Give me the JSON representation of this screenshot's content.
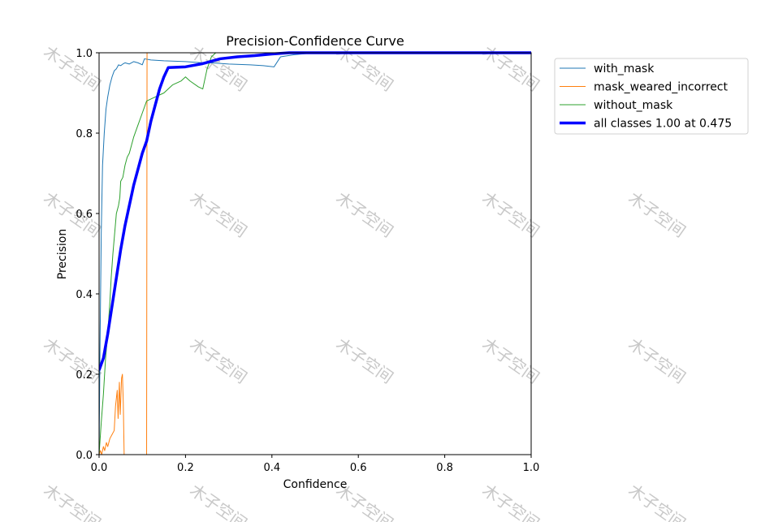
{
  "chart_data": {
    "type": "line",
    "title": "Precision-Confidence Curve",
    "xlabel": "Confidence",
    "ylabel": "Precision",
    "xlim": [
      0,
      1
    ],
    "ylim": [
      0,
      1
    ],
    "xticks": [
      "0.0",
      "0.2",
      "0.4",
      "0.6",
      "0.8",
      "1.0"
    ],
    "yticks": [
      "0.0",
      "0.2",
      "0.4",
      "0.6",
      "0.8",
      "1.0"
    ],
    "grid": false,
    "legend_position": "outside-top-right",
    "watermark": "木子空间",
    "series": [
      {
        "name": "with_mask",
        "color": "#1f77b4",
        "width": 1,
        "points": [
          [
            0.0,
            0.0
          ],
          [
            0.002,
            0.25
          ],
          [
            0.005,
            0.55
          ],
          [
            0.008,
            0.72
          ],
          [
            0.012,
            0.8
          ],
          [
            0.016,
            0.86
          ],
          [
            0.02,
            0.89
          ],
          [
            0.025,
            0.92
          ],
          [
            0.03,
            0.94
          ],
          [
            0.035,
            0.955
          ],
          [
            0.04,
            0.96
          ],
          [
            0.045,
            0.97
          ],
          [
            0.05,
            0.968
          ],
          [
            0.055,
            0.972
          ],
          [
            0.06,
            0.975
          ],
          [
            0.07,
            0.972
          ],
          [
            0.08,
            0.978
          ],
          [
            0.09,
            0.975
          ],
          [
            0.1,
            0.97
          ],
          [
            0.105,
            0.985
          ],
          [
            0.12,
            0.982
          ],
          [
            0.15,
            0.98
          ],
          [
            0.2,
            0.978
          ],
          [
            0.24,
            0.975
          ],
          [
            0.26,
            0.975
          ],
          [
            0.3,
            0.972
          ],
          [
            0.35,
            0.97
          ],
          [
            0.38,
            0.968
          ],
          [
            0.405,
            0.965
          ],
          [
            0.42,
            0.99
          ],
          [
            0.45,
            0.995
          ],
          [
            0.5,
            1.0
          ],
          [
            1.0,
            1.0
          ]
        ]
      },
      {
        "name": "mask_weared_incorrect",
        "color": "#ff7f0e",
        "width": 1,
        "points": [
          [
            0.0,
            0.0
          ],
          [
            0.003,
            0.01
          ],
          [
            0.006,
            0.0
          ],
          [
            0.01,
            0.02
          ],
          [
            0.013,
            0.01
          ],
          [
            0.017,
            0.03
          ],
          [
            0.02,
            0.02
          ],
          [
            0.025,
            0.04
          ],
          [
            0.03,
            0.05
          ],
          [
            0.035,
            0.06
          ],
          [
            0.038,
            0.12
          ],
          [
            0.042,
            0.16
          ],
          [
            0.044,
            0.09
          ],
          [
            0.047,
            0.18
          ],
          [
            0.049,
            0.1
          ],
          [
            0.052,
            0.19
          ],
          [
            0.054,
            0.2
          ],
          [
            0.056,
            0.13
          ],
          [
            0.058,
            0.0
          ],
          [
            0.11,
            0.0
          ],
          [
            0.111,
            1.0
          ],
          [
            1.0,
            1.0
          ]
        ]
      },
      {
        "name": "without_mask",
        "color": "#2ca02c",
        "width": 1,
        "points": [
          [
            0.0,
            0.0
          ],
          [
            0.005,
            0.08
          ],
          [
            0.01,
            0.15
          ],
          [
            0.015,
            0.24
          ],
          [
            0.02,
            0.3
          ],
          [
            0.025,
            0.38
          ],
          [
            0.028,
            0.44
          ],
          [
            0.032,
            0.5
          ],
          [
            0.036,
            0.55
          ],
          [
            0.04,
            0.6
          ],
          [
            0.045,
            0.62
          ],
          [
            0.048,
            0.64
          ],
          [
            0.05,
            0.68
          ],
          [
            0.055,
            0.69
          ],
          [
            0.06,
            0.72
          ],
          [
            0.065,
            0.74
          ],
          [
            0.07,
            0.75
          ],
          [
            0.075,
            0.77
          ],
          [
            0.08,
            0.79
          ],
          [
            0.09,
            0.82
          ],
          [
            0.1,
            0.85
          ],
          [
            0.11,
            0.88
          ],
          [
            0.12,
            0.885
          ],
          [
            0.13,
            0.89
          ],
          [
            0.15,
            0.9
          ],
          [
            0.17,
            0.92
          ],
          [
            0.19,
            0.93
          ],
          [
            0.2,
            0.94
          ],
          [
            0.21,
            0.93
          ],
          [
            0.23,
            0.915
          ],
          [
            0.24,
            0.91
          ],
          [
            0.25,
            0.96
          ],
          [
            0.26,
            0.99
          ],
          [
            0.27,
            1.0
          ],
          [
            1.0,
            1.0
          ]
        ]
      },
      {
        "name": "all classes 1.00 at 0.475",
        "color": "#0000ff",
        "width": 3.5,
        "points": [
          [
            0.0,
            0.21
          ],
          [
            0.01,
            0.24
          ],
          [
            0.02,
            0.3
          ],
          [
            0.03,
            0.37
          ],
          [
            0.04,
            0.44
          ],
          [
            0.05,
            0.51
          ],
          [
            0.06,
            0.57
          ],
          [
            0.07,
            0.62
          ],
          [
            0.08,
            0.67
          ],
          [
            0.09,
            0.71
          ],
          [
            0.1,
            0.75
          ],
          [
            0.11,
            0.78
          ],
          [
            0.12,
            0.83
          ],
          [
            0.13,
            0.87
          ],
          [
            0.14,
            0.91
          ],
          [
            0.15,
            0.94
          ],
          [
            0.16,
            0.963
          ],
          [
            0.2,
            0.965
          ],
          [
            0.24,
            0.973
          ],
          [
            0.28,
            0.985
          ],
          [
            0.32,
            0.99
          ],
          [
            0.36,
            0.993
          ],
          [
            0.4,
            0.997
          ],
          [
            0.44,
            1.0
          ],
          [
            0.475,
            1.0
          ],
          [
            1.0,
            1.0
          ]
        ]
      }
    ]
  }
}
